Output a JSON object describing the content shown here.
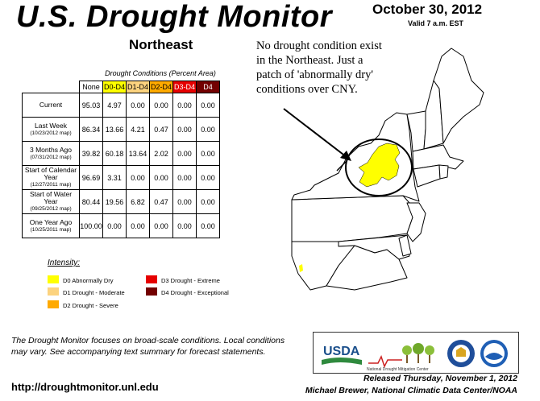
{
  "header": {
    "title": "U.S. Drought Monitor",
    "region": "Northeast",
    "date": "October 30, 2012",
    "valid": "Valid 7 a.m. EST"
  },
  "annotation": {
    "lines": [
      "No drought condition exist",
      "in the Northeast. Just a",
      "patch of 'abnormally dry'",
      "conditions over CNY."
    ]
  },
  "table": {
    "caption": "Drought Conditions (Percent Area)",
    "columns": [
      "None",
      "D0-D4",
      "D1-D4",
      "D2-D4",
      "D3-D4",
      "D4"
    ],
    "rows": [
      {
        "label": "Current",
        "sub": "",
        "values": [
          "95.03",
          "4.97",
          "0.00",
          "0.00",
          "0.00",
          "0.00"
        ]
      },
      {
        "label": "Last Week",
        "sub": "(10/23/2012 map)",
        "values": [
          "86.34",
          "13.66",
          "4.21",
          "0.47",
          "0.00",
          "0.00"
        ]
      },
      {
        "label": "3 Months Ago",
        "sub": "(07/31/2012 map)",
        "values": [
          "39.82",
          "60.18",
          "13.64",
          "2.02",
          "0.00",
          "0.00"
        ]
      },
      {
        "label": "Start of Calendar Year",
        "sub": "(12/27/2011 map)",
        "values": [
          "96.69",
          "3.31",
          "0.00",
          "0.00",
          "0.00",
          "0.00"
        ]
      },
      {
        "label": "Start of Water Year",
        "sub": "(09/25/2012 map)",
        "values": [
          "80.44",
          "19.56",
          "6.82",
          "0.47",
          "0.00",
          "0.00"
        ]
      },
      {
        "label": "One Year Ago",
        "sub": "(10/25/2011 map)",
        "values": [
          "100.00",
          "0.00",
          "0.00",
          "0.00",
          "0.00",
          "0.00"
        ]
      }
    ]
  },
  "legend": {
    "title": "Intensity:",
    "items": [
      {
        "label": "D0 Abnormally Dry",
        "color": "#ffff00"
      },
      {
        "label": "D1 Drought - Moderate",
        "color": "#fcd37f"
      },
      {
        "label": "D2 Drought - Severe",
        "color": "#ffaa00"
      },
      {
        "label": "D3 Drought - Extreme",
        "color": "#e60000"
      },
      {
        "label": "D4 Drought - Exceptional",
        "color": "#730000"
      }
    ]
  },
  "footer": {
    "note": "The Drought Monitor focuses on broad-scale conditions. Local conditions may vary. See accompanying text summary for forecast statements.",
    "url": "http://droughtmonitor.unl.edu",
    "released": "Released Thursday, November 1, 2012",
    "author": "Michael Brewer, National Climatic Data Center/NOAA"
  },
  "logos": {
    "usda": "USDA",
    "ndmc": "National Drought Mitigation Center"
  },
  "colors": {
    "d0": "#ffff00",
    "d1": "#fcd37f",
    "d2": "#ffaa00",
    "d3": "#e60000",
    "d4": "#730000"
  }
}
